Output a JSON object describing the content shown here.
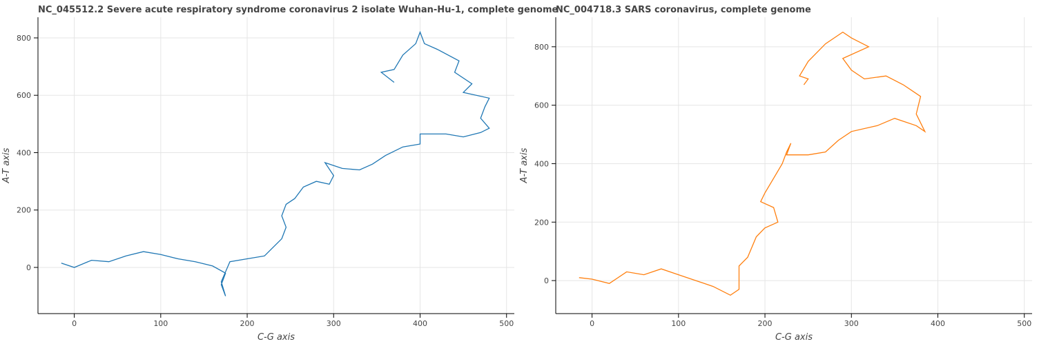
{
  "chart_data": [
    {
      "type": "line",
      "title": "NC_045512.2 Severe acute respiratory syndrome coronavirus 2 isolate Wuhan-Hu-1, complete genome",
      "xlabel": "C-G axis",
      "ylabel": "A-T axis",
      "color": "#1f77b4",
      "grid": true,
      "xlim": [
        -42,
        509
      ],
      "ylim": [
        -161,
        872
      ],
      "xticks": [
        0,
        100,
        200,
        300,
        400,
        500
      ],
      "yticks": [
        0,
        200,
        400,
        600,
        800
      ],
      "x": [
        -15,
        0,
        20,
        40,
        60,
        80,
        100,
        120,
        140,
        160,
        175,
        170,
        175,
        170,
        180,
        200,
        220,
        230,
        240,
        245,
        240,
        245,
        255,
        265,
        280,
        295,
        300,
        290,
        310,
        330,
        345,
        360,
        380,
        400,
        400,
        430,
        450,
        470,
        480,
        470,
        475,
        480,
        450,
        460,
        440,
        445,
        420,
        405,
        400,
        395,
        380,
        370,
        355,
        370
      ],
      "values": [
        15,
        0,
        25,
        20,
        40,
        55,
        45,
        30,
        20,
        5,
        -20,
        -60,
        -100,
        -50,
        20,
        30,
        40,
        70,
        100,
        140,
        180,
        220,
        240,
        280,
        300,
        290,
        320,
        365,
        345,
        340,
        360,
        390,
        420,
        430,
        465,
        465,
        455,
        470,
        485,
        520,
        560,
        590,
        610,
        640,
        680,
        720,
        760,
        780,
        820,
        780,
        740,
        690,
        680,
        645
      ]
    },
    {
      "type": "line",
      "title": "NC_004718.3 SARS coronavirus, complete genome",
      "xlabel": "C-G axis",
      "ylabel": "A-T axis",
      "color": "#ff7f0e",
      "grid": true,
      "xlim": [
        -42,
        509
      ],
      "ylim": [
        -113,
        901
      ],
      "xticks": [
        0,
        100,
        200,
        300,
        400,
        500
      ],
      "yticks": [
        0,
        200,
        400,
        600,
        800
      ],
      "x": [
        -15,
        0,
        20,
        40,
        60,
        80,
        100,
        120,
        140,
        160,
        170,
        170,
        180,
        190,
        200,
        215,
        210,
        195,
        200,
        210,
        220,
        225,
        230,
        225,
        250,
        270,
        285,
        300,
        330,
        350,
        375,
        385,
        375,
        380,
        360,
        340,
        315,
        300,
        290,
        320,
        300,
        290,
        270,
        250,
        240,
        250,
        245
      ],
      "values": [
        10,
        5,
        -10,
        30,
        20,
        40,
        20,
        0,
        -20,
        -50,
        -30,
        50,
        80,
        150,
        180,
        200,
        250,
        270,
        300,
        350,
        400,
        440,
        470,
        430,
        430,
        440,
        480,
        510,
        530,
        555,
        530,
        510,
        570,
        630,
        670,
        700,
        690,
        720,
        760,
        800,
        830,
        850,
        810,
        750,
        700,
        690,
        670
      ]
    }
  ]
}
